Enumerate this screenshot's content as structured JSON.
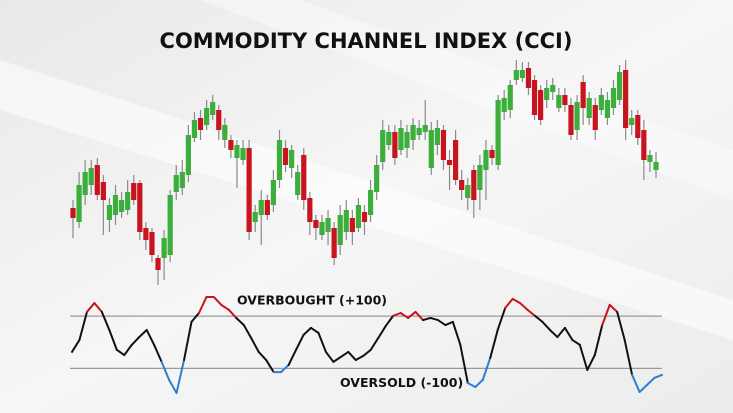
{
  "chart_data": [
    {
      "type": "candlestick",
      "title": "COMMODITY CHANNEL INDEX (CCI)",
      "up_color": "#3cae3c",
      "down_color": "#c8141e",
      "ylim": [
        0,
        250
      ],
      "open": [
        92,
        78,
        105,
        115,
        135,
        118,
        80,
        85,
        88,
        90,
        117,
        117,
        72,
        68,
        42,
        42,
        45,
        108,
        112,
        125,
        162,
        182,
        175,
        185,
        190,
        160,
        160,
        142,
        140,
        152,
        78,
        85,
        100,
        95,
        120,
        152,
        132,
        105,
        145,
        102,
        80,
        65,
        68,
        72,
        55,
        68,
        82,
        72,
        88,
        85,
        108,
        138,
        155,
        168,
        150,
        152,
        160,
        165,
        168,
        132,
        155,
        170,
        140,
        160,
        120,
        102,
        130,
        110,
        130,
        150,
        135,
        188,
        190,
        220,
        222,
        232,
        220,
        210,
        200,
        208,
        192,
        205,
        195,
        170,
        218,
        182,
        195,
        190,
        182,
        192,
        200,
        230,
        175,
        185,
        170,
        138,
        130
      ],
      "high": [
        100,
        128,
        140,
        140,
        142,
        125,
        102,
        115,
        108,
        120,
        125,
        120,
        78,
        72,
        45,
        70,
        110,
        135,
        140,
        175,
        188,
        190,
        200,
        205,
        195,
        182,
        165,
        160,
        160,
        160,
        95,
        110,
        105,
        130,
        170,
        160,
        155,
        135,
        152,
        108,
        85,
        85,
        90,
        78,
        95,
        100,
        90,
        102,
        95,
        120,
        145,
        180,
        175,
        175,
        180,
        175,
        182,
        180,
        200,
        178,
        180,
        175,
        150,
        170,
        130,
        122,
        135,
        145,
        160,
        155,
        205,
        210,
        220,
        240,
        238,
        238,
        225,
        215,
        220,
        222,
        212,
        212,
        202,
        205,
        225,
        208,
        202,
        212,
        208,
        220,
        235,
        240,
        190,
        190,
        180,
        150,
        148
      ],
      "low": [
        62,
        72,
        95,
        105,
        100,
        65,
        68,
        75,
        82,
        85,
        95,
        60,
        50,
        38,
        15,
        20,
        38,
        100,
        105,
        118,
        158,
        160,
        170,
        180,
        160,
        152,
        142,
        112,
        135,
        60,
        68,
        55,
        80,
        88,
        112,
        128,
        122,
        100,
        90,
        65,
        60,
        60,
        55,
        35,
        45,
        60,
        55,
        68,
        65,
        78,
        100,
        130,
        150,
        135,
        145,
        142,
        150,
        160,
        160,
        125,
        145,
        130,
        110,
        115,
        100,
        90,
        82,
        90,
        100,
        135,
        130,
        180,
        182,
        215,
        218,
        205,
        180,
        175,
        192,
        200,
        188,
        188,
        160,
        160,
        175,
        175,
        160,
        185,
        175,
        185,
        195,
        160,
        165,
        155,
        120,
        128,
        122
      ],
      "close": [
        82,
        115,
        128,
        132,
        105,
        100,
        95,
        105,
        100,
        108,
        100,
        68,
        60,
        45,
        30,
        62,
        105,
        125,
        128,
        165,
        180,
        170,
        192,
        198,
        170,
        175,
        150,
        155,
        152,
        68,
        88,
        100,
        85,
        120,
        160,
        135,
        150,
        128,
        100,
        78,
        72,
        78,
        82,
        42,
        85,
        90,
        68,
        95,
        78,
        110,
        135,
        170,
        168,
        142,
        172,
        168,
        175,
        172,
        175,
        170,
        172,
        140,
        135,
        120,
        110,
        115,
        100,
        135,
        150,
        142,
        200,
        202,
        215,
        230,
        230,
        212,
        185,
        180,
        212,
        215,
        205,
        195,
        165,
        198,
        192,
        202,
        170,
        205,
        200,
        212,
        228,
        172,
        182,
        162,
        140,
        145,
        138
      ]
    },
    {
      "type": "line",
      "color": "#111111",
      "above_color": "#c8141e",
      "below_color": "#2a7fd4",
      "ylim": [
        -240,
        200
      ],
      "reference_lines": [
        {
          "value": 100,
          "label": "OVERBOUGHT (+100)"
        },
        {
          "value": -100,
          "label": "OVERSOLD (-100)"
        }
      ],
      "values": [
        -37,
        9,
        116,
        150,
        116,
        47,
        -29,
        -49,
        -10,
        20,
        47,
        -10,
        -75,
        -144,
        -194,
        -68,
        78,
        112,
        173,
        173,
        143,
        124,
        93,
        66,
        16,
        -37,
        -68,
        -114,
        -114,
        -87,
        -29,
        28,
        55,
        36,
        -37,
        -75,
        -56,
        -37,
        -68,
        -52,
        -29,
        16,
        62,
        101,
        112,
        93,
        116,
        85,
        93,
        85,
        66,
        78,
        -10,
        -156,
        -171,
        -144,
        -60,
        47,
        131,
        166,
        150,
        124,
        101,
        78,
        47,
        20,
        55,
        9,
        -10,
        -106,
        -49,
        66,
        143,
        116,
        9,
        -125,
        -190,
        -163,
        -136,
        -125
      ]
    }
  ]
}
